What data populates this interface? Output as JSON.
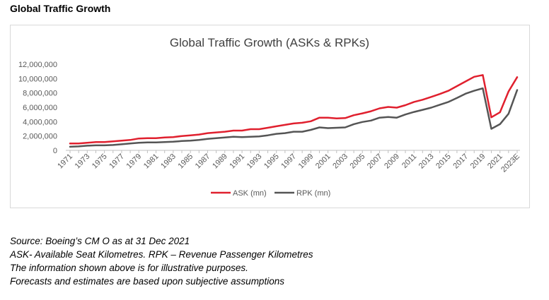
{
  "page_title": "Global Traffic Growth",
  "chart_data": {
    "type": "line",
    "title": "Global Traffic Growth (ASKs & RPKs)",
    "xlabel": "",
    "ylabel": "",
    "ylim": [
      0,
      12000000
    ],
    "y_ticks": [
      "12,000,000",
      "10,000,000",
      "8,000,000",
      "6,000,000",
      "4,000,000",
      "2,000,000",
      "0"
    ],
    "y_tick_values": [
      12000000,
      10000000,
      8000000,
      6000000,
      4000000,
      2000000,
      0
    ],
    "x_tick_labels": [
      "1971",
      "1973",
      "1975",
      "1977",
      "1979",
      "1981",
      "1983",
      "1985",
      "1987",
      "1989",
      "1991",
      "1993",
      "1995",
      "1997",
      "1999",
      "2001",
      "2003",
      "2005",
      "2007",
      "2009",
      "2011",
      "2013",
      "2015",
      "2017",
      "2019",
      "2021",
      "2023E"
    ],
    "x": [
      "1971",
      "1972",
      "1973",
      "1974",
      "1975",
      "1976",
      "1977",
      "1978",
      "1979",
      "1980",
      "1981",
      "1982",
      "1983",
      "1984",
      "1985",
      "1986",
      "1987",
      "1988",
      "1989",
      "1990",
      "1991",
      "1992",
      "1993",
      "1994",
      "1995",
      "1996",
      "1997",
      "1998",
      "1999",
      "2000",
      "2001",
      "2002",
      "2003",
      "2004",
      "2005",
      "2006",
      "2007",
      "2008",
      "2009",
      "2010",
      "2011",
      "2012",
      "2013",
      "2014",
      "2015",
      "2016",
      "2017",
      "2018",
      "2019",
      "2020",
      "2021",
      "2022",
      "2023E"
    ],
    "grid": false,
    "legend_position": "bottom",
    "series": [
      {
        "name": "ASK (mn)",
        "color": "#e0202e",
        "values": [
          950000,
          950000,
          1050000,
          1150000,
          1150000,
          1250000,
          1350000,
          1450000,
          1650000,
          1700000,
          1700000,
          1800000,
          1850000,
          2000000,
          2100000,
          2200000,
          2400000,
          2500000,
          2600000,
          2750000,
          2750000,
          2950000,
          2950000,
          3150000,
          3350000,
          3550000,
          3750000,
          3850000,
          4050000,
          4550000,
          4550000,
          4450000,
          4500000,
          4900000,
          5150000,
          5450000,
          5850000,
          6050000,
          5950000,
          6300000,
          6750000,
          7050000,
          7450000,
          7850000,
          8300000,
          8950000,
          9600000,
          10250000,
          10500000,
          4600000,
          5300000,
          8200000,
          10200000
        ]
      },
      {
        "name": "RPK (mn)",
        "color": "#555555",
        "values": [
          500000,
          550000,
          650000,
          700000,
          700000,
          750000,
          850000,
          950000,
          1050000,
          1100000,
          1100000,
          1150000,
          1200000,
          1300000,
          1350000,
          1450000,
          1600000,
          1700000,
          1800000,
          1900000,
          1850000,
          1900000,
          1950000,
          2100000,
          2300000,
          2400000,
          2600000,
          2600000,
          2850000,
          3200000,
          3100000,
          3150000,
          3200000,
          3650000,
          3950000,
          4150000,
          4550000,
          4650000,
          4550000,
          5000000,
          5350000,
          5650000,
          5950000,
          6350000,
          6750000,
          7300000,
          7900000,
          8300000,
          8650000,
          3000000,
          3650000,
          5100000,
          8400000
        ]
      }
    ]
  },
  "notes": [
    "Source: Boeing’s CM O as at 31 Dec 2021",
    "ASK- Available Seat Kilometres. RPK – Revenue Passenger Kilometres",
    "The information shown above is for illustrative purposes.",
    "Forecasts and estimates are based upon subjective assumptions"
  ]
}
